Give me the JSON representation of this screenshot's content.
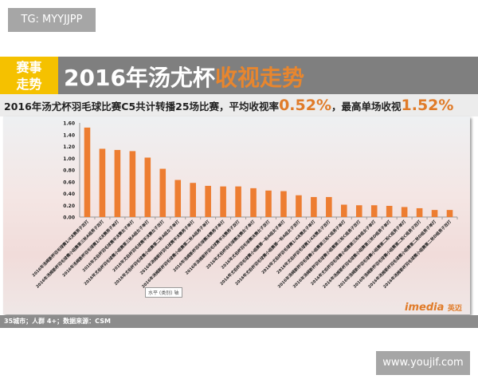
{
  "watermark_top": "TG: MYYJJPP",
  "header": {
    "tag_line1": "赛事",
    "tag_line2": "走势",
    "title_main": "2016年汤尤杯",
    "title_highlight": "收视走势"
  },
  "subtitle": {
    "text1": "2016年汤尤杯羽毛球比赛C5共计转播25场比赛，平均收视率",
    "avg": "0.52%",
    "text2": "，最高单场收视",
    "max": "1.52%"
  },
  "footer": {
    "note": "35城市；人群 4+；数据来源：CSM",
    "logo": "imedia",
    "logo_cn": "英迈"
  },
  "axis_tooltip": "水平 (类别) 轴",
  "watermark_bottom": "www.youjif.com",
  "colors": {
    "bar": "#ed7d31",
    "header": "#7f7f7f",
    "tag": "#f5c100",
    "accent": "#e07b29"
  },
  "chart_data": {
    "type": "bar",
    "ylim": [
      0,
      1.6
    ],
    "yticks": [
      "0.00",
      "0.20",
      "0.40",
      "0.60",
      "0.80",
      "1.00",
      "1.20",
      "1.40",
      "1.60"
    ],
    "grid": false,
    "categories": [
      "2016年汤姆斯杯羽毛球赛1/4决赛男子双打",
      "2016年汤姆斯杯羽毛球赛小组赛第三轮A组男子双打",
      "2016年汤姆斯杯羽毛球赛1/4决赛男子单打",
      "2016年尤伯杯羽毛球赛半决赛女子单打",
      "2016年尤伯杯羽毛球赛小组赛第三轮A组女子单打",
      "2016年尤伯杯羽毛球赛半决赛女子双打",
      "2016年尤伯杯羽毛球赛小组赛第二轮A组女子单打",
      "2016年汤姆斯杯羽毛球赛半决赛男子单打",
      "2016年汤姆斯杯羽毛球赛小组赛第二轮A组男子单打",
      "2016年汤姆斯杯羽毛球赛决赛男子单打",
      "2016年汤姆斯杯羽毛球赛半决赛男子双打",
      "2016年尤伯杯羽毛球赛决赛女子单打",
      "2016年尤伯杯羽毛球赛决赛女子双打",
      "2016年尤伯杯羽毛球赛小组赛第一轮A组女子单打",
      "2016年尤伯杯羽毛球赛小组赛第一轮A组女子双打",
      "2016年尤伯杯羽毛球赛1/4决赛女子单打",
      "2016年尤伯杯羽毛球赛1/4决赛女子双打",
      "2016年汤姆斯杯羽毛球赛小组赛第三轮C组男子单打",
      "2016年汤姆斯杯羽毛球赛小组赛第三轮C组男子双打",
      "2016年尤伯杯羽毛球赛小组赛第三轮B组女子单打",
      "2016年汤姆斯杯羽毛球赛小组赛第三轮D组男子单打",
      "2016年汤姆斯杯羽毛球赛小组赛第二轮C组男子单打",
      "2016年汤姆斯杯羽毛球赛小组赛第二轮C组男子双打",
      "2016年汤姆斯杯羽毛球赛小组赛第二轮D组男子单打",
      "2016年汤姆斯杯羽毛球赛小组赛第二轮D组男子双打"
    ],
    "values": [
      1.52,
      1.16,
      1.14,
      1.12,
      1.01,
      0.82,
      0.63,
      0.58,
      0.53,
      0.52,
      0.52,
      0.49,
      0.45,
      0.44,
      0.37,
      0.34,
      0.34,
      0.21,
      0.2,
      0.2,
      0.19,
      0.17,
      0.15,
      0.12,
      0.12
    ]
  }
}
